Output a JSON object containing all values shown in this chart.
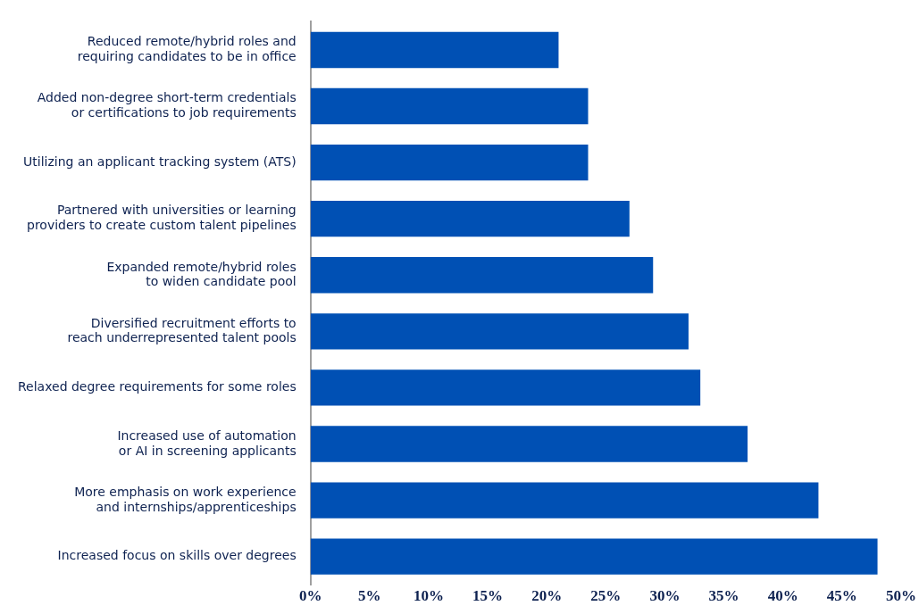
{
  "chart_data": {
    "type": "bar",
    "orientation": "horizontal",
    "categories": [
      "Reduced remote/hybrid roles and\nrequiring candidates to be in office",
      "Added non-degree short-term credentials\nor certifications to job requirements",
      "Utilizing an applicant tracking system (ATS)",
      "Partnered with universities or learning\nproviders to create custom talent pipelines",
      "Expanded remote/hybrid roles\nto widen candidate pool",
      "Diversified recruitment efforts to\nreach underrepresented talent pools",
      "Relaxed degree requirements for some roles",
      "Increased use of automation\nor AI in screening applicants",
      "More emphasis on work experience\nand internships/apprenticeships",
      "Increased focus on skills over degrees"
    ],
    "values": [
      21,
      23.5,
      23.5,
      27,
      29,
      32,
      33,
      37,
      43,
      48
    ],
    "color": "#0050b4",
    "xlim": [
      0,
      50
    ],
    "xticks": [
      {
        "value": 0,
        "label": "0%"
      },
      {
        "value": 5,
        "label": "5%"
      },
      {
        "value": 10,
        "label": "10%"
      },
      {
        "value": 15,
        "label": "15%"
      },
      {
        "value": 20,
        "label": "20%"
      },
      {
        "value": 25,
        "label": "25%"
      },
      {
        "value": 30,
        "label": "30%"
      },
      {
        "value": 35,
        "label": "35%"
      },
      {
        "value": 40,
        "label": "40%"
      },
      {
        "value": 45,
        "label": "45%"
      },
      {
        "value": 50,
        "label": "50%"
      }
    ],
    "grid": false,
    "legend": false
  }
}
